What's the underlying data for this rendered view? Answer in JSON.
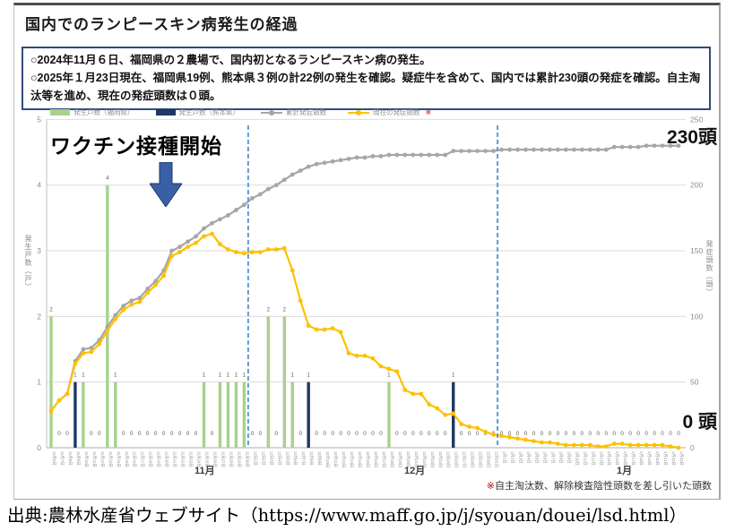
{
  "title": "国内でのランピースキン病発生の経過",
  "summary_box": {
    "line1": "○2024年11月６日、福岡県の２農場で、国内初となるランピースキン病の発生。",
    "line2": "○2025年１月23日現在、福岡県19例、熊本県３例の計22例の発生を確認。疑症牛を含めて、国内では累計230頭の発症を確認。自主淘汰等を進め、現在の発症頭数は０頭。"
  },
  "legend": [
    {
      "label": "発生戸数（福岡県）",
      "swatch": "bar",
      "color": "#a9d18e"
    },
    {
      "label": "発生戸数（熊本県）",
      "swatch": "bar",
      "color": "#1f3864"
    },
    {
      "label": "累計発症頭数",
      "swatch": "line",
      "color": "#a6a6a6"
    },
    {
      "label": "現在の発症頭数",
      "swatch": "line",
      "color": "#ffc000",
      "suffix": "※",
      "suffix_color": "#c00000"
    }
  ],
  "annotations": {
    "vaccine_label": "ワクチン接種開始",
    "cumulative_end_label": "230頭",
    "current_end_label": "0 頭"
  },
  "month_labels": [
    "11月",
    "12月",
    "1月"
  ],
  "note": {
    "marker": "※",
    "text": "自主淘汰数、解除検査陰性頭数を差し引いた頭数"
  },
  "source": "出典:農林水産省ウェブサイト（https://www.maff.go.jp/j/syouan/douei/lsd.html）",
  "colors": {
    "fukuoka_bar": "#a9d18e",
    "kumamoto_bar": "#1f3864",
    "cumulative_line": "#a6a6a6",
    "current_line": "#ffc000",
    "month_separator": "#5b9bd5",
    "arrow_blue": "#3a5fa7",
    "note_red": "#c00000"
  },
  "chart_data": {
    "type": "combo_bar_line",
    "left_axis": {
      "title": "発生戸数（戸）",
      "min": 0,
      "max": 5,
      "ticks": [
        250,
        200,
        150,
        100,
        50,
        0
      ],
      "tick_labels": [
        5,
        4,
        3,
        2,
        1,
        0
      ]
    },
    "right_axis": {
      "title": "発症頭数（頭）",
      "min": 0,
      "max": 250,
      "ticks": [
        250,
        200,
        150,
        100,
        50,
        0
      ]
    },
    "month_separator_indices": [
      24.5,
      55.5
    ],
    "x_label_dates": [
      "11月6日",
      "11月7日",
      "11月8日",
      "11月9日",
      "11月10日",
      "11月11日",
      "11月12日",
      "11月13日",
      "11月14日",
      "11月15日",
      "11月16日",
      "11月17日",
      "11月18日",
      "11月19日",
      "11月20日",
      "11月21日",
      "11月22日",
      "11月23日",
      "11月24日",
      "11月25日",
      "11月26日",
      "11月27日",
      "11月28日",
      "11月29日",
      "11月30日",
      "12月1日",
      "12月2日",
      "12月3日",
      "12月4日",
      "12月5日",
      "12月6日",
      "12月7日",
      "12月8日",
      "12月9日",
      "12月10日",
      "12月11日",
      "12月12日",
      "12月13日",
      "12月14日",
      "12月15日",
      "12月16日",
      "12月17日",
      "12月18日",
      "12月19日",
      "12月20日",
      "12月21日",
      "12月22日",
      "12月23日",
      "12月24日",
      "12月25日",
      "12月26日",
      "12月27日",
      "12月28日",
      "12月29日",
      "12月30日",
      "12月31日",
      "1月1日",
      "1月2日",
      "1月3日",
      "1月4日",
      "1月5日",
      "1月6日",
      "1月7日",
      "1月8日",
      "1月9日",
      "1月10日",
      "1月11日",
      "1月12日",
      "1月13日",
      "1月14日",
      "1月15日",
      "1月16日",
      "1月17日",
      "1月18日",
      "1月19日",
      "1月20日",
      "1月21日",
      "1月22日",
      "1月23日"
    ],
    "series": [
      {
        "name": "発生戸数（福岡県）",
        "type": "bar",
        "axis": "left",
        "color": "#a9d18e",
        "values": [
          2,
          0,
          0,
          0,
          1,
          0,
          0,
          4,
          1,
          0,
          0,
          0,
          0,
          0,
          0,
          0,
          0,
          0,
          0,
          1,
          0,
          1,
          1,
          1,
          1,
          0,
          0,
          2,
          0,
          2,
          1,
          0,
          0,
          0,
          0,
          0,
          0,
          0,
          0,
          0,
          0,
          0,
          1,
          0,
          0,
          0,
          0,
          0,
          0,
          0,
          0,
          0,
          0,
          0,
          0,
          0,
          0,
          0,
          0,
          0,
          0,
          0,
          0,
          0,
          0,
          0,
          0,
          0,
          0,
          0,
          0,
          0,
          0,
          0,
          0,
          0,
          0,
          0,
          0
        ]
      },
      {
        "name": "発生戸数（熊本県）",
        "type": "bar",
        "axis": "left",
        "color": "#1f3864",
        "values": [
          0,
          0,
          0,
          1,
          0,
          0,
          0,
          0,
          0,
          0,
          0,
          0,
          0,
          0,
          0,
          0,
          0,
          0,
          0,
          0,
          0,
          0,
          0,
          0,
          0,
          0,
          0,
          0,
          0,
          0,
          0,
          0,
          1,
          0,
          0,
          0,
          0,
          0,
          0,
          0,
          0,
          0,
          0,
          0,
          0,
          0,
          0,
          0,
          0,
          0,
          1,
          0,
          0,
          0,
          0,
          0,
          0,
          0,
          0,
          0,
          0,
          0,
          0,
          0,
          0,
          0,
          0,
          0,
          0,
          0,
          0,
          0,
          0,
          0,
          0,
          0,
          0,
          0,
          0
        ]
      },
      {
        "name": "累計発症頭数",
        "type": "line",
        "axis": "right",
        "color": "#a6a6a6",
        "values": [
          28,
          36,
          41,
          66,
          75,
          76,
          82,
          92,
          101,
          108,
          112,
          114,
          121,
          127,
          135,
          150,
          153,
          157,
          161,
          167,
          171,
          174,
          177,
          181,
          185,
          190,
          193,
          197,
          200,
          204,
          208,
          211,
          214,
          216,
          217,
          218,
          219,
          220,
          221,
          221,
          222,
          222,
          223,
          223,
          223,
          223,
          223,
          223,
          223,
          223,
          226,
          226,
          226,
          226,
          226,
          226,
          227,
          227,
          227,
          227,
          227,
          227,
          227,
          227,
          227,
          227,
          227,
          227,
          227,
          227,
          229,
          229,
          229,
          229,
          230,
          230,
          230,
          230,
          230
        ]
      },
      {
        "name": "現在の発症頭数",
        "type": "line",
        "axis": "right",
        "color": "#ffc000",
        "values": [
          28,
          36,
          41,
          64,
          72,
          73,
          79,
          89,
          98,
          105,
          109,
          111,
          118,
          124,
          131,
          146,
          149,
          153,
          156,
          161,
          163,
          155,
          151,
          149,
          148,
          149,
          149,
          151,
          151,
          152,
          135,
          112,
          93,
          90,
          90,
          91,
          88,
          72,
          70,
          70,
          68,
          62,
          60,
          58,
          44,
          41,
          41,
          33,
          30,
          25,
          26,
          18,
          16,
          15,
          12,
          10,
          9,
          8,
          7,
          6,
          5,
          4,
          4,
          3,
          2,
          2,
          2,
          2,
          1,
          1,
          3,
          3,
          2,
          2,
          2,
          2,
          2,
          1,
          0
        ]
      }
    ]
  }
}
